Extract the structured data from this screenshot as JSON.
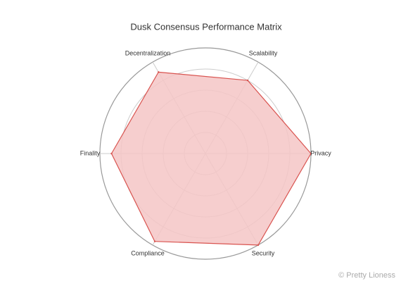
{
  "chart_data": {
    "type": "radar",
    "title": "Dusk Consensus Performance Matrix",
    "categories": [
      "Privacy",
      "Scalability",
      "Decentralization",
      "Finality",
      "Compliance",
      "Security"
    ],
    "values": [
      100,
      80,
      89,
      89,
      96,
      100
    ],
    "color": "#d9534f",
    "fill": "#f4c6c6",
    "rlim": [
      0,
      100
    ],
    "rticks": [
      20,
      40,
      60,
      80,
      100
    ],
    "grid": true
  },
  "watermark": "© Pretty Lioness"
}
